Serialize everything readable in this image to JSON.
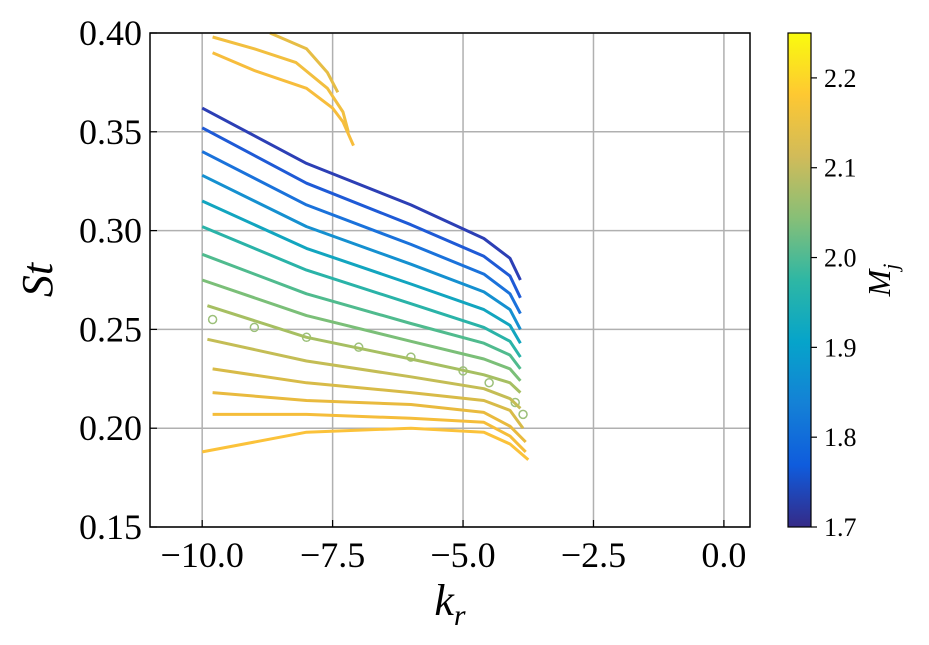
{
  "chart_data": {
    "type": "line",
    "xlabel": {
      "base": "k",
      "sub": "r"
    },
    "ylabel": "St",
    "xlim": [
      -11,
      0.5
    ],
    "ylim": [
      0.15,
      0.4
    ],
    "xticks": [
      {
        "value": -10,
        "label": "−10.0"
      },
      {
        "value": -7.5,
        "label": "−7.5"
      },
      {
        "value": -5,
        "label": "−5.0"
      },
      {
        "value": -2.5,
        "label": "−2.5"
      },
      {
        "value": 0,
        "label": "0.0"
      }
    ],
    "yticks": [
      0.15,
      {
        "value": 0.2,
        "label": "0.20"
      },
      0.25,
      {
        "value": 0.3,
        "label": "0.30"
      },
      0.35,
      {
        "value": 0.4,
        "label": "0.40"
      }
    ],
    "grid": true,
    "series": [
      {
        "color": "#2c3fb5",
        "x": [
          -10,
          -8,
          -6,
          -4.6,
          -4.1,
          -3.9
        ],
        "values": [
          0.362,
          0.334,
          0.313,
          0.296,
          0.286,
          0.275
        ]
      },
      {
        "color": "#1f5ad6",
        "x": [
          -10,
          -8,
          -6,
          -4.6,
          -4.1,
          -3.9
        ],
        "values": [
          0.352,
          0.324,
          0.303,
          0.287,
          0.277,
          0.266
        ]
      },
      {
        "color": "#1a72db",
        "x": [
          -10,
          -8,
          -6,
          -4.6,
          -4.1,
          -3.9
        ],
        "values": [
          0.34,
          0.313,
          0.293,
          0.278,
          0.268,
          0.258
        ]
      },
      {
        "color": "#1590d0",
        "x": [
          -10,
          -8,
          -6,
          -4.6,
          -4.1,
          -3.9
        ],
        "values": [
          0.328,
          0.302,
          0.283,
          0.269,
          0.26,
          0.25
        ]
      },
      {
        "color": "#12a5bf",
        "x": [
          -10,
          -8,
          -6,
          -4.6,
          -4.1,
          -3.9
        ],
        "values": [
          0.315,
          0.291,
          0.273,
          0.26,
          0.252,
          0.243
        ]
      },
      {
        "color": "#2ab3a8",
        "x": [
          -10,
          -8,
          -6,
          -4.6,
          -4.1,
          -3.9
        ],
        "values": [
          0.302,
          0.28,
          0.263,
          0.251,
          0.244,
          0.236
        ]
      },
      {
        "color": "#50bb8e",
        "x": [
          -10,
          -8,
          -6,
          -4.6,
          -4.1,
          -3.9
        ],
        "values": [
          0.288,
          0.268,
          0.253,
          0.243,
          0.237,
          0.23
        ]
      },
      {
        "color": "#7bbf78",
        "x": [
          -10,
          -8,
          -6,
          -4.6,
          -4.1,
          -3.9
        ],
        "values": [
          0.275,
          0.257,
          0.244,
          0.235,
          0.23,
          0.224
        ]
      },
      {
        "color": "#9cc07a",
        "marker": "o",
        "x": [
          -9.8,
          -9,
          -8,
          -7,
          -6,
          -5,
          -4.5,
          -4,
          -3.85
        ],
        "values": [
          0.255,
          0.251,
          0.246,
          0.241,
          0.236,
          0.229,
          0.223,
          0.213,
          0.207
        ]
      },
      {
        "color": "#a6bf62",
        "x": [
          -9.9,
          -8,
          -6,
          -4.6,
          -4.1,
          -3.9
        ],
        "values": [
          0.262,
          0.246,
          0.235,
          0.227,
          0.223,
          0.218
        ]
      },
      {
        "color": "#c4bd55",
        "x": [
          -9.9,
          -8,
          -6,
          -4.6,
          -4.1,
          -3.9
        ],
        "values": [
          0.245,
          0.234,
          0.226,
          0.22,
          0.215,
          0.21
        ]
      },
      {
        "color": "#d8bb48",
        "x": [
          -9.8,
          -8,
          -6,
          -4.6,
          -4.1,
          -3.85
        ],
        "values": [
          0.23,
          0.223,
          0.218,
          0.214,
          0.209,
          0.2
        ]
      },
      {
        "color": "#e9ba3e",
        "x": [
          -9.8,
          -8,
          -6,
          -4.6,
          -4.1,
          -3.8
        ],
        "values": [
          0.218,
          0.214,
          0.212,
          0.208,
          0.201,
          0.193
        ]
      },
      {
        "color": "#f5bd3a",
        "x": [
          -9.8,
          -8,
          -6,
          -4.6,
          -4.1,
          -3.8
        ],
        "values": [
          0.207,
          0.207,
          0.205,
          0.203,
          0.196,
          0.188
        ]
      },
      {
        "color": "#fbc23a",
        "x": [
          -10,
          -8,
          -6,
          -4.6,
          -4.1,
          -3.75
        ],
        "values": [
          0.188,
          0.198,
          0.2,
          0.198,
          0.192,
          0.184
        ]
      },
      {
        "color": "#f7bd3c",
        "x": [
          -9.8,
          -9,
          -8,
          -7.5,
          -7.3,
          -7.1
        ],
        "values": [
          0.39,
          0.381,
          0.372,
          0.362,
          0.355,
          0.343
        ]
      },
      {
        "color": "#f2bf3f",
        "x": [
          -9.8,
          -9,
          -8.2,
          -7.6,
          -7.3,
          -7.2
        ],
        "values": [
          0.398,
          0.392,
          0.385,
          0.372,
          0.36,
          0.35
        ]
      },
      {
        "color": "#e6bd45",
        "x": [
          -8.7,
          -8,
          -7.6,
          -7.4
        ],
        "values": [
          0.4,
          0.392,
          0.38,
          0.37
        ]
      }
    ],
    "colorbar": {
      "clim": [
        1.7,
        2.25
      ],
      "ticks": [
        {
          "value": 1.7,
          "label": "1.7"
        },
        {
          "value": 1.8,
          "label": "1.8"
        },
        {
          "value": 1.9,
          "label": "1.9"
        },
        {
          "value": 2.0,
          "label": "2.0"
        },
        {
          "value": 2.1,
          "label": "2.1"
        },
        {
          "value": 2.2,
          "label": "2.2"
        }
      ],
      "label": {
        "base": "M",
        "sub": "j"
      },
      "colors": [
        "#352a87",
        "#0f5cdd",
        "#1481d6",
        "#06a4ca",
        "#2eb7a4",
        "#87bf77",
        "#d1bb59",
        "#fec832",
        "#f9fb0e"
      ]
    }
  }
}
